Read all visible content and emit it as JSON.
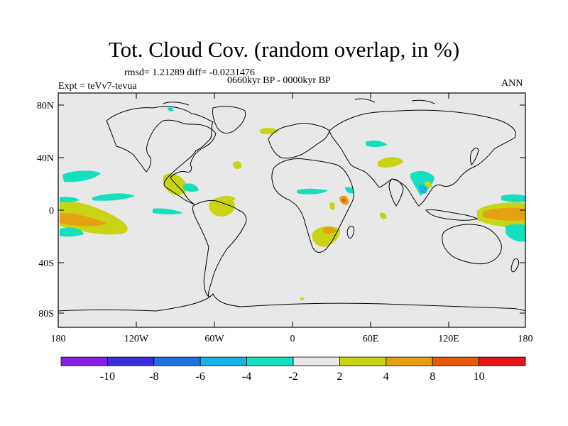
{
  "title": "Tot. Cloud Cov. (random overlap, in %)",
  "stats": "rmsd= 1.21289 diff= -0.0231476",
  "period": "0660kyr BP - 0000kyr BP",
  "experiment": "Expt = teVv7-tevua",
  "season": "ANN",
  "axes": {
    "lat_ticks": [
      "80N",
      "40N",
      "0",
      "40S",
      "80S"
    ],
    "lon_ticks": [
      "180",
      "120W",
      "60W",
      "0",
      "60E",
      "120E",
      "180"
    ]
  },
  "colorbar": {
    "labels": [
      "-10",
      "-8",
      "-6",
      "-4",
      "-2",
      "2",
      "4",
      "8",
      "10"
    ],
    "colors": [
      "#8a1ee6",
      "#3b2ee0",
      "#1e6fe0",
      "#14b4e6",
      "#14e0c0",
      "#e8e8e8",
      "#c8d414",
      "#e6a014",
      "#e65a0a",
      "#e61414"
    ]
  },
  "colors": {
    "land_bg": "#e8e8e8",
    "pos_2_4": "#c8d414",
    "pos_4_8": "#e6a014",
    "pos_8_10": "#e65a0a",
    "neg_2_4": "#14e0c0",
    "neg_4_6": "#14b4e6"
  }
}
